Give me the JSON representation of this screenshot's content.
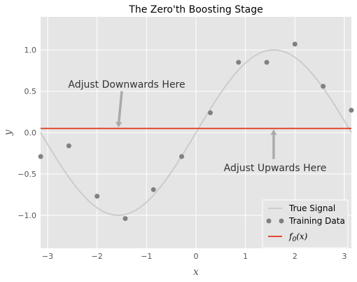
{
  "chart_data": {
    "type": "line",
    "title": "The Zero'th Boosting Stage",
    "xlabel": "x",
    "ylabel": "y",
    "xlim": [
      -3.14159,
      3.14159
    ],
    "ylim": [
      -1.4,
      1.4
    ],
    "xticks": [
      -3,
      -2,
      -1,
      0,
      1,
      2,
      3
    ],
    "yticks": [
      -1.0,
      -0.5,
      0.0,
      0.5,
      1.0
    ],
    "xtick_labels": [
      "−3",
      "−2",
      "−1",
      "0",
      "1",
      "2",
      "3"
    ],
    "ytick_labels": [
      "−1.0",
      "−0.5",
      "0.0",
      "0.5",
      "1.0"
    ],
    "grid": true,
    "legend_position": "lower-right",
    "series": [
      {
        "name": "True Signal",
        "kind": "line",
        "function": "sin(x)",
        "color": "#cccccc"
      },
      {
        "name": "Training Data",
        "kind": "scatter",
        "color": "#808080",
        "x": [
          -3.14,
          -2.57,
          -2.0,
          -1.43,
          -0.86,
          -0.29,
          0.29,
          0.86,
          1.43,
          2.0,
          2.57,
          3.14
        ],
        "y": [
          -0.29,
          -0.16,
          -0.77,
          -1.04,
          -0.69,
          -0.29,
          0.24,
          0.85,
          0.85,
          1.07,
          0.56,
          0.27
        ]
      },
      {
        "name": "f_0(x)",
        "kind": "hline",
        "value": 0.05,
        "color": "#e24a33"
      }
    ],
    "legend_labels": {
      "true_signal": "True Signal",
      "training_data": "Training Data",
      "f0": "f",
      "f0_sub": "0",
      "f0_arg": "(x)"
    },
    "annotations": [
      {
        "text": "Adjust Downwards Here",
        "arrow_from": [
          -1.5,
          0.5
        ],
        "arrow_to": [
          -1.57,
          0.06
        ]
      },
      {
        "text": "Adjust Upwards Here",
        "arrow_from": [
          1.57,
          -0.32
        ],
        "arrow_to": [
          1.57,
          0.04
        ]
      }
    ]
  }
}
